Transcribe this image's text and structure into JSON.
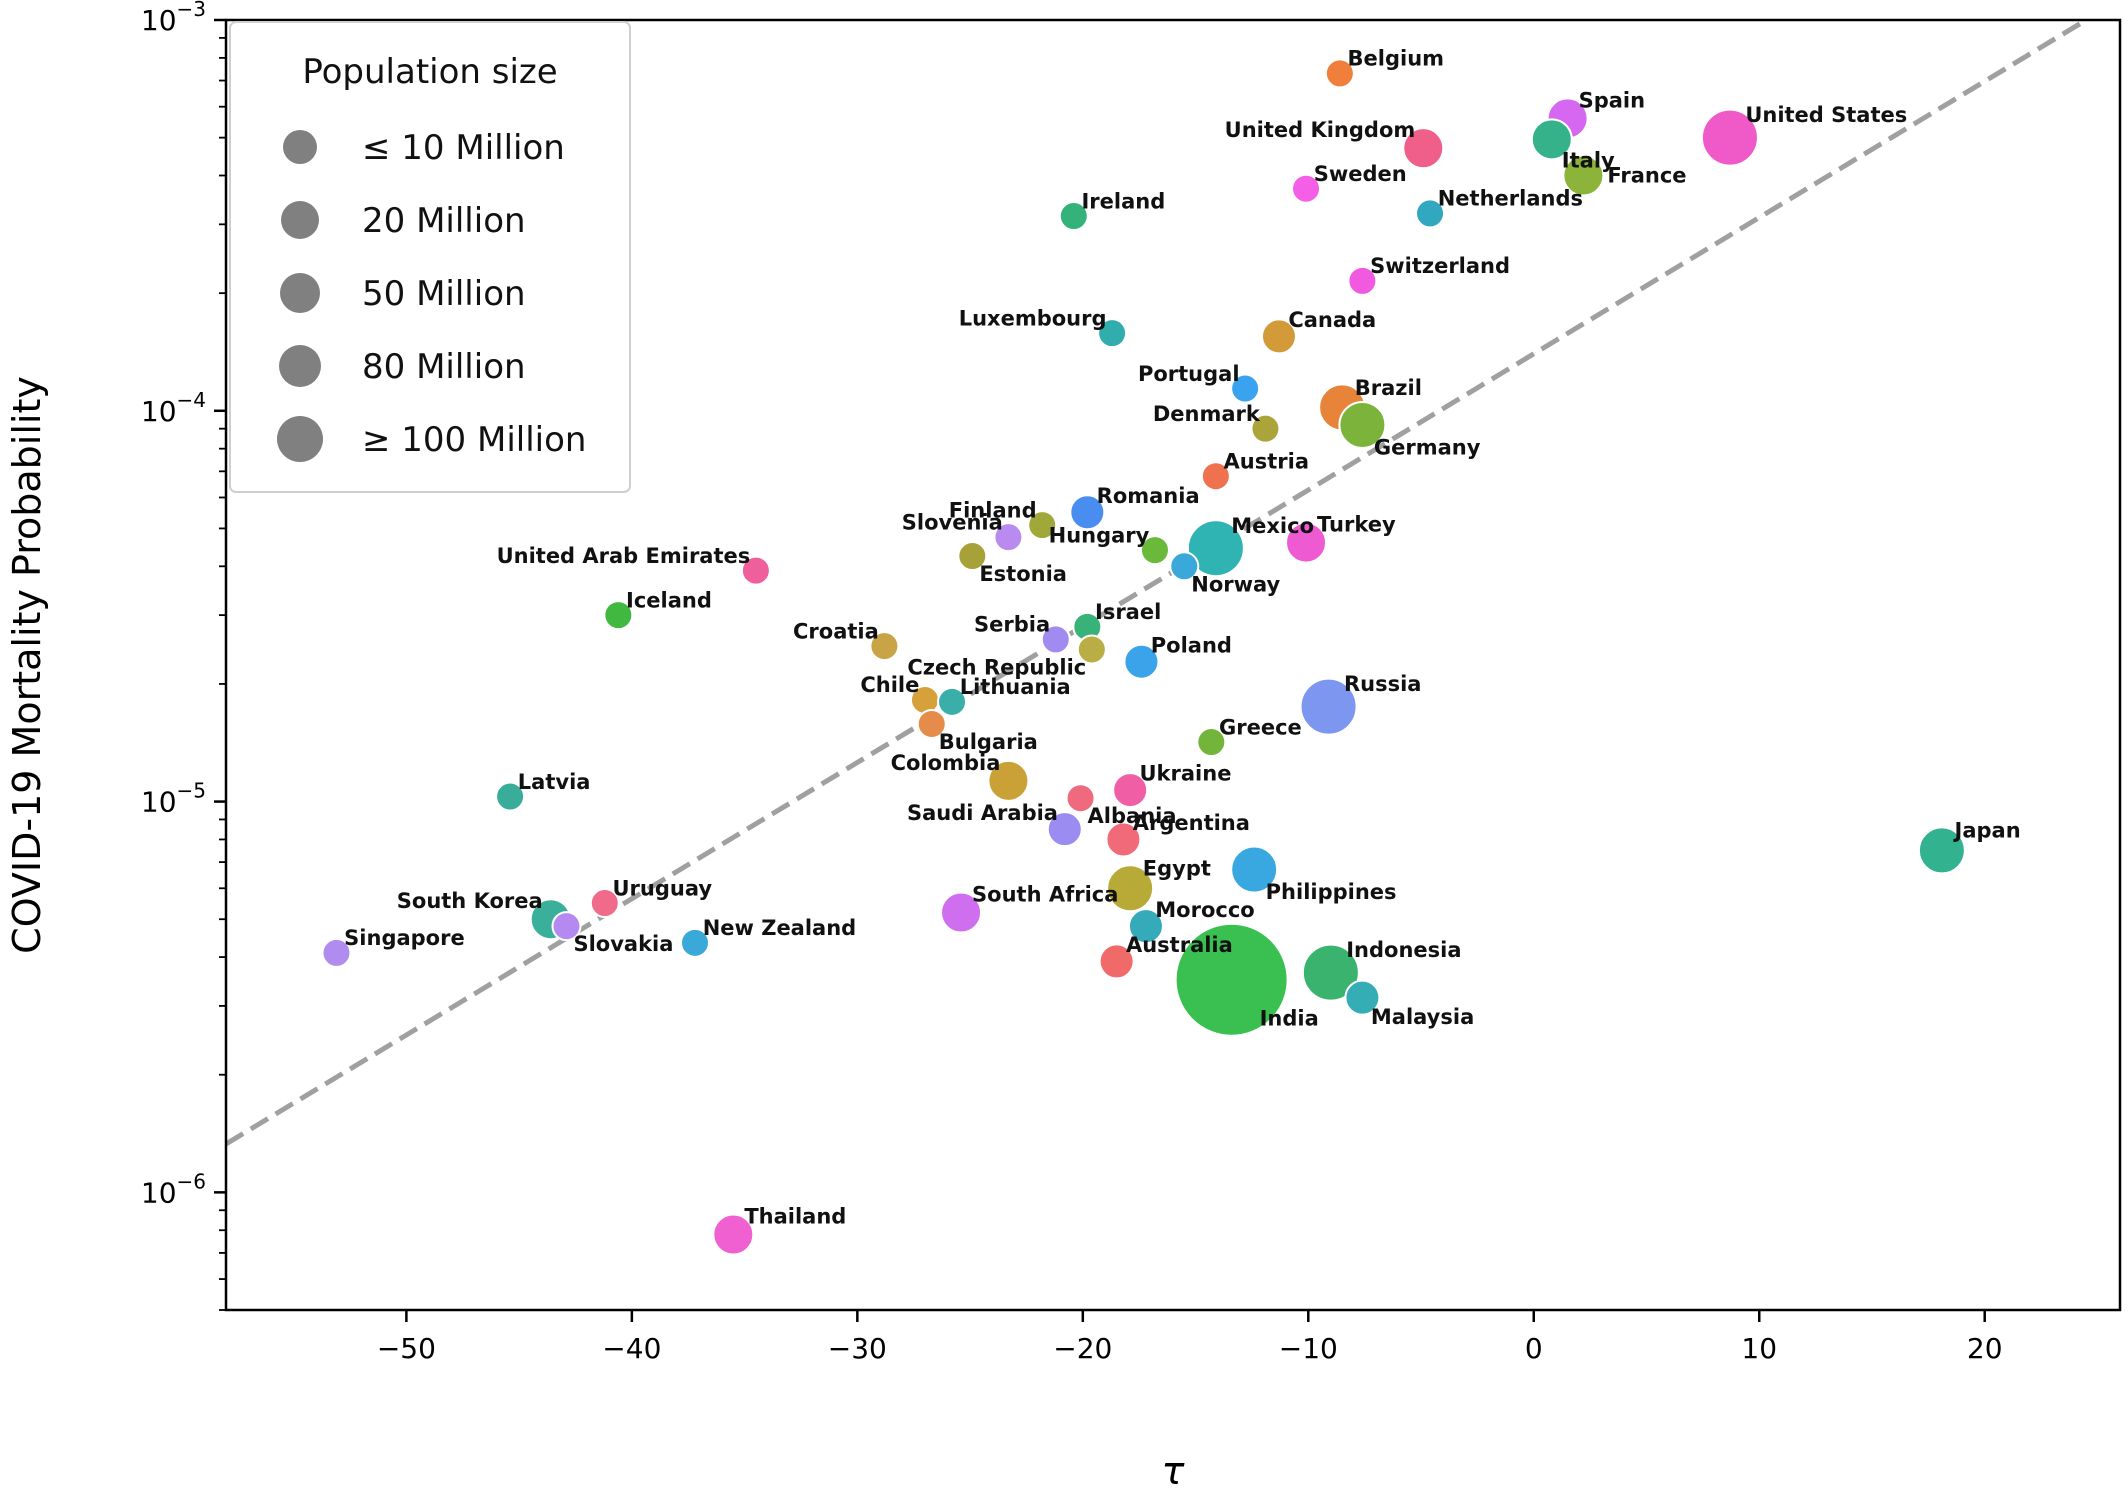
{
  "chart_data": {
    "type": "scatter",
    "xlabel": "τ",
    "ylabel": "COVID-19 Mortality Probability",
    "xlim": [
      -58,
      26
    ],
    "ylim": [
      5e-07,
      0.001
    ],
    "y_scale": "log",
    "x_ticks": [
      -50,
      -40,
      -30,
      -20,
      -10,
      0,
      10,
      20
    ],
    "x_tick_labels": [
      "−50",
      "−40",
      "−30",
      "−20",
      "−10",
      "0",
      "10",
      "20"
    ],
    "y_ticks": [
      {
        "value": 1e-06,
        "base": "10",
        "exp": "−6"
      },
      {
        "value": 1e-05,
        "base": "10",
        "exp": "−5"
      },
      {
        "value": 0.0001,
        "base": "10",
        "exp": "−4"
      },
      {
        "value": 0.001,
        "base": "10",
        "exp": "−3"
      }
    ],
    "grid": false,
    "trend_line": {
      "style": "dashed",
      "color": "#a0a0a0",
      "points": [
        [
          -58,
          1.33e-06
        ],
        [
          24.5,
          0.001
        ]
      ]
    },
    "legend": {
      "title": "Population size",
      "placement": "top-left",
      "items": [
        {
          "label": "≤ 10 Million",
          "size": 1
        },
        {
          "label": "20 Million",
          "size": 2
        },
        {
          "label": "50 Million",
          "size": 3
        },
        {
          "label": "80 Million",
          "size": 4
        },
        {
          "label": "≥ 100 Million",
          "size": 5
        }
      ],
      "marker_color": "#808080"
    },
    "points": [
      {
        "name": "Belgium",
        "x": -8.6,
        "y": 0.00073,
        "size": 1,
        "color": "#f07f3c",
        "label_side": "right-up"
      },
      {
        "name": "Spain",
        "x": 1.5,
        "y": 0.00056,
        "size": 3,
        "color": "#d667f0",
        "label_side": "right-up"
      },
      {
        "name": "United Kingdom",
        "x": -4.9,
        "y": 0.00047,
        "size": 3,
        "color": "#ef5f8a",
        "label_side": "left-up"
      },
      {
        "name": "Italy",
        "x": 0.8,
        "y": 0.000495,
        "size": 3,
        "color": "#36b28a",
        "label_side": "right-down"
      },
      {
        "name": "United States",
        "x": 8.7,
        "y": 0.0005,
        "size": 5,
        "color": "#f05ac8",
        "label_side": "right-up"
      },
      {
        "name": "France",
        "x": 2.2,
        "y": 0.0004,
        "size": 3,
        "color": "#8db43a",
        "label_side": "right"
      },
      {
        "name": "Sweden",
        "x": -10.1,
        "y": 0.00037,
        "size": 1,
        "color": "#f55ee6",
        "label_side": "right-up"
      },
      {
        "name": "Netherlands",
        "x": -4.6,
        "y": 0.00032,
        "size": 1,
        "color": "#32a8c0",
        "label_side": "right-up"
      },
      {
        "name": "Ireland",
        "x": -20.4,
        "y": 0.000315,
        "size": 1,
        "color": "#33b279",
        "label_side": "right-up"
      },
      {
        "name": "Switzerland",
        "x": -7.6,
        "y": 0.000215,
        "size": 1,
        "color": "#f15ae0",
        "label_side": "right-up"
      },
      {
        "name": "Luxembourg",
        "x": -18.7,
        "y": 0.000158,
        "size": 1,
        "color": "#31adad",
        "label_side": "left-up"
      },
      {
        "name": "Canada",
        "x": -11.3,
        "y": 0.000155,
        "size": 2,
        "color": "#d39a3a",
        "label_side": "right-up"
      },
      {
        "name": "Portugal",
        "x": -12.8,
        "y": 0.000114,
        "size": 1,
        "color": "#3aa3f0",
        "label_side": "left-up"
      },
      {
        "name": "Brazil",
        "x": -8.5,
        "y": 0.000102,
        "size": 4,
        "color": "#e8843a",
        "label_side": "right-up"
      },
      {
        "name": "Denmark",
        "x": -11.9,
        "y": 9e-05,
        "size": 1,
        "color": "#aaa43a",
        "label_side": "left-up"
      },
      {
        "name": "Germany",
        "x": -7.6,
        "y": 9.2e-05,
        "size": 4,
        "color": "#7cb33a",
        "label_side": "right-down"
      },
      {
        "name": "Austria",
        "x": -14.1,
        "y": 6.8e-05,
        "size": 1,
        "color": "#f0714e",
        "label_side": "right-up"
      },
      {
        "name": "Romania",
        "x": -19.8,
        "y": 5.5e-05,
        "size": 2,
        "color": "#4a8df0",
        "label_side": "right-up"
      },
      {
        "name": "Finland",
        "x": -21.8,
        "y": 5.1e-05,
        "size": 1,
        "color": "#9fa838",
        "label_side": "left-up"
      },
      {
        "name": "Slovenia",
        "x": -23.3,
        "y": 4.75e-05,
        "size": 1,
        "color": "#b98af0",
        "label_side": "left-up"
      },
      {
        "name": "Hungary",
        "x": -16.8,
        "y": 4.4e-05,
        "size": 1,
        "color": "#6ab93a",
        "label_side": "left-up"
      },
      {
        "name": "Mexico",
        "x": -14.1,
        "y": 4.45e-05,
        "size": 5,
        "color": "#2fb3b3",
        "label_side": "right-up"
      },
      {
        "name": "Turkey",
        "x": -10.1,
        "y": 4.6e-05,
        "size": 3,
        "color": "#ee5ad2",
        "label_side": "right-up"
      },
      {
        "name": "Estonia",
        "x": -24.9,
        "y": 4.25e-05,
        "size": 1,
        "color": "#a6a138",
        "label_side": "right-down"
      },
      {
        "name": "Norway",
        "x": -15.5,
        "y": 4e-05,
        "size": 1,
        "color": "#3aa8d8",
        "label_side": "right-down"
      },
      {
        "name": "United Arab Emirates",
        "x": -34.5,
        "y": 3.9e-05,
        "size": 1,
        "color": "#ef5f9c",
        "label_side": "left-up"
      },
      {
        "name": "Iceland",
        "x": -40.6,
        "y": 3e-05,
        "size": 1,
        "color": "#41b840",
        "label_side": "right-up"
      },
      {
        "name": "Israel",
        "x": -19.8,
        "y": 2.8e-05,
        "size": 1,
        "color": "#37b37a",
        "label_side": "right-up"
      },
      {
        "name": "Serbia",
        "x": -21.2,
        "y": 2.6e-05,
        "size": 1,
        "color": "#a28af0",
        "label_side": "left-up"
      },
      {
        "name": "Croatia",
        "x": -28.8,
        "y": 2.5e-05,
        "size": 1,
        "color": "#c9a447",
        "label_side": "left-up"
      },
      {
        "name": "Czech Republic",
        "x": -19.6,
        "y": 2.45e-05,
        "size": 1,
        "color": "#b8ae45",
        "label_side": "left-down"
      },
      {
        "name": "Poland",
        "x": -17.4,
        "y": 2.28e-05,
        "size": 2,
        "color": "#3aa3ea",
        "label_side": "right-up"
      },
      {
        "name": "Chile",
        "x": -27.0,
        "y": 1.82e-05,
        "size": 1,
        "color": "#d6a03a",
        "label_side": "left-up"
      },
      {
        "name": "Lithuania",
        "x": -25.8,
        "y": 1.8e-05,
        "size": 1,
        "color": "#3aafaa",
        "label_side": "right-up"
      },
      {
        "name": "Bulgaria",
        "x": -26.7,
        "y": 1.58e-05,
        "size": 1,
        "color": "#e58c4a",
        "label_side": "right-down"
      },
      {
        "name": "Russia",
        "x": -9.1,
        "y": 1.75e-05,
        "size": 5,
        "color": "#7d96f0",
        "label_side": "right-up"
      },
      {
        "name": "Greece",
        "x": -14.3,
        "y": 1.42e-05,
        "size": 1,
        "color": "#73b43a",
        "label_side": "right-up"
      },
      {
        "name": "Latvia",
        "x": -45.4,
        "y": 1.03e-05,
        "size": 1,
        "color": "#3aad9a",
        "label_side": "right-up"
      },
      {
        "name": "Colombia",
        "x": -23.3,
        "y": 1.13e-05,
        "size": 3,
        "color": "#c9a136",
        "label_side": "left-up"
      },
      {
        "name": "Ukraine",
        "x": -17.9,
        "y": 1.07e-05,
        "size": 2,
        "color": "#f05fa5",
        "label_side": "right-up"
      },
      {
        "name": "Albania",
        "x": -20.1,
        "y": 1.02e-05,
        "size": 1,
        "color": "#f06a7f",
        "label_side": "right-down"
      },
      {
        "name": "Saudi Arabia",
        "x": -20.8,
        "y": 8.5e-06,
        "size": 2,
        "color": "#9a8cf0",
        "label_side": "left-up"
      },
      {
        "name": "Argentina",
        "x": -18.2,
        "y": 8e-06,
        "size": 2,
        "color": "#f06a7a",
        "label_side": "right-up"
      },
      {
        "name": "Japan",
        "x": 18.1,
        "y": 7.5e-06,
        "size": 4,
        "color": "#33b28f",
        "label_side": "right-up"
      },
      {
        "name": "Philippines",
        "x": -12.4,
        "y": 6.7e-06,
        "size": 4,
        "color": "#3aa8e0",
        "label_side": "right-down"
      },
      {
        "name": "Egypt",
        "x": -17.9,
        "y": 6e-06,
        "size": 4,
        "color": "#b7aa36",
        "label_side": "right-up"
      },
      {
        "name": "Uruguay",
        "x": -41.2,
        "y": 5.5e-06,
        "size": 1,
        "color": "#f06a8a",
        "label_side": "right-up"
      },
      {
        "name": "South Africa",
        "x": -25.4,
        "y": 5.2e-06,
        "size": 3,
        "color": "#d06ef0",
        "label_side": "right-up"
      },
      {
        "name": "South Korea",
        "x": -43.6,
        "y": 5e-06,
        "size": 3,
        "color": "#3ab09a",
        "label_side": "left-up"
      },
      {
        "name": "Morocco",
        "x": -17.2,
        "y": 4.8e-06,
        "size": 2,
        "color": "#35aab8",
        "label_side": "right-up"
      },
      {
        "name": "Slovakia",
        "x": -42.9,
        "y": 4.8e-06,
        "size": 1,
        "color": "#b48af0",
        "label_side": "right-down"
      },
      {
        "name": "New Zealand",
        "x": -37.2,
        "y": 4.35e-06,
        "size": 1,
        "color": "#3aa8d8",
        "label_side": "right-up"
      },
      {
        "name": "Singapore",
        "x": -53.1,
        "y": 4.1e-06,
        "size": 1,
        "color": "#b18cf0",
        "label_side": "right-up"
      },
      {
        "name": "Australia",
        "x": -18.5,
        "y": 3.9e-06,
        "size": 2,
        "color": "#f06a6a",
        "label_side": "right-up"
      },
      {
        "name": "Indonesia",
        "x": -9.0,
        "y": 3.65e-06,
        "size": 5,
        "color": "#3ab36f",
        "label_side": "right-up"
      },
      {
        "name": "India",
        "x": -13.4,
        "y": 3.5e-06,
        "size": 7,
        "color": "#3ac050",
        "label_side": "right-down"
      },
      {
        "name": "Malaysia",
        "x": -7.6,
        "y": 3.15e-06,
        "size": 2,
        "color": "#35adb5",
        "label_side": "right-down"
      },
      {
        "name": "Thailand",
        "x": -35.5,
        "y": 7.8e-07,
        "size": 3,
        "color": "#f060d0",
        "label_side": "right-up"
      }
    ]
  }
}
